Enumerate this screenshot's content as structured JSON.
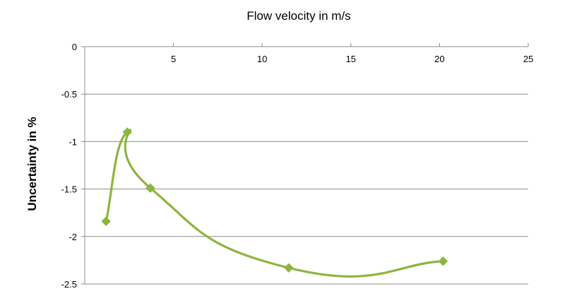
{
  "chart_data": {
    "type": "line",
    "title": "",
    "xlabel": "Flow velocity in m/s",
    "ylabel": "Uncertainty in %",
    "xlim": [
      0,
      25
    ],
    "ylim": [
      -2.5,
      0
    ],
    "x_ticks": [
      5,
      10,
      15,
      20,
      25
    ],
    "y_ticks": [
      0,
      -0.5,
      -1,
      -1.5,
      -2,
      -2.5
    ],
    "x_tick_labels": [
      "5",
      "10",
      "15",
      "20",
      "25"
    ],
    "y_tick_labels": [
      "0",
      "-0.5",
      "-1",
      "-1.5",
      "-2",
      "-2.5"
    ],
    "x_axis_position": "top",
    "grid": "horizontal",
    "legend": "none",
    "smoothed": true,
    "marker": "diamond",
    "series": [
      {
        "color": "#8db53f",
        "points": [
          {
            "x": 1.2,
            "y": -1.84
          },
          {
            "x": 2.4,
            "y": -0.9
          },
          {
            "x": 3.7,
            "y": -1.49
          },
          {
            "x": 11.5,
            "y": -2.33
          },
          {
            "x": 20.2,
            "y": -2.26
          }
        ]
      }
    ]
  }
}
